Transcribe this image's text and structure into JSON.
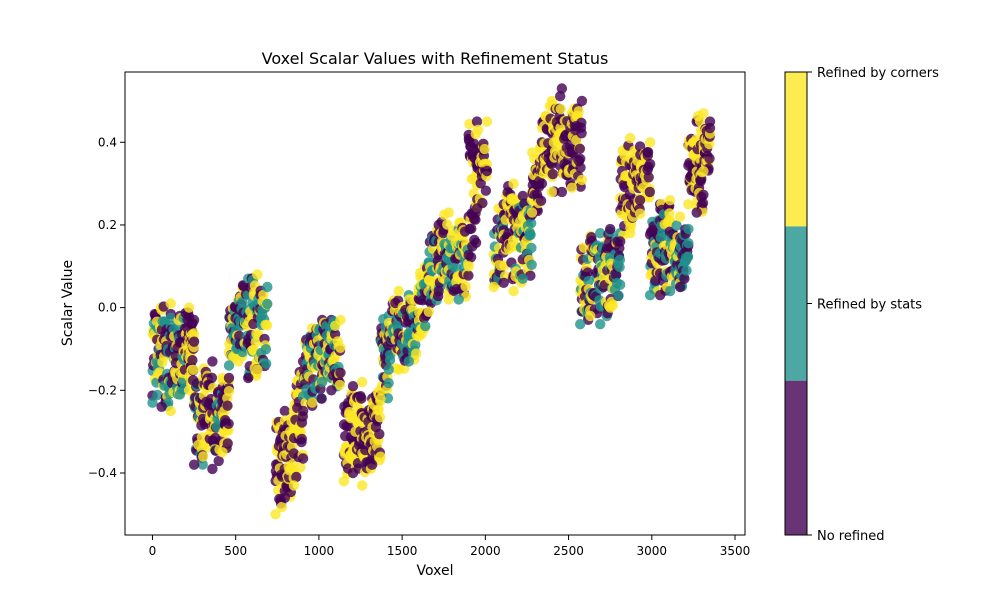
{
  "chart_data": {
    "type": "scatter",
    "title": "Voxel Scalar Values with Refinement Status",
    "xlabel": "Voxel",
    "ylabel": "Scalar Value",
    "xlim": [
      -165,
      3560
    ],
    "ylim": [
      -0.55,
      0.57
    ],
    "x_ticks": [
      0,
      500,
      1000,
      1500,
      2000,
      2500,
      3000,
      3500
    ],
    "x_tick_labels": [
      "0",
      "500",
      "1000",
      "1500",
      "2000",
      "2500",
      "3000",
      "3500"
    ],
    "y_ticks": [
      -0.4,
      -0.2,
      0.0,
      0.2,
      0.4
    ],
    "y_tick_labels": [
      "−0.4",
      "−0.2",
      "0.0",
      "0.2",
      "0.4"
    ],
    "grid": false,
    "marker_alpha": 0.8,
    "colorbar": {
      "categories": [
        {
          "label": "No refined",
          "value": 0,
          "color": "#440154"
        },
        {
          "label": "Refined by stats",
          "value": 1,
          "color": "#21918c"
        },
        {
          "label": "Refined by corners",
          "value": 2,
          "color": "#fde725"
        }
      ],
      "range": [
        0,
        2
      ]
    },
    "blocks": [
      {
        "x": [
          0,
          50
        ],
        "y": [
          -0.23,
          0.0
        ],
        "status": [
          1,
          2,
          0
        ]
      },
      {
        "x": [
          55,
          110
        ],
        "y": [
          -0.24,
          0.01
        ],
        "status": [
          0,
          2,
          1
        ]
      },
      {
        "x": [
          110,
          165
        ],
        "y": [
          -0.25,
          -0.02
        ],
        "status": [
          2,
          0,
          1
        ]
      },
      {
        "x": [
          165,
          220
        ],
        "y": [
          -0.21,
          0.0
        ],
        "status": [
          1,
          2,
          0
        ]
      },
      {
        "x": [
          220,
          250
        ],
        "y": [
          -0.2,
          -0.03
        ],
        "status": [
          2,
          0
        ]
      },
      {
        "x": [
          250,
          305
        ],
        "y": [
          -0.38,
          -0.17
        ],
        "status": [
          0,
          2,
          1
        ]
      },
      {
        "x": [
          305,
          360
        ],
        "y": [
          -0.36,
          -0.13
        ],
        "status": [
          2,
          0
        ]
      },
      {
        "x": [
          360,
          420
        ],
        "y": [
          -0.39,
          -0.17
        ],
        "status": [
          0,
          2,
          1
        ]
      },
      {
        "x": [
          420,
          460
        ],
        "y": [
          -0.35,
          -0.17
        ],
        "status": [
          2,
          0
        ]
      },
      {
        "x": [
          460,
          515
        ],
        "y": [
          -0.14,
          0.02
        ],
        "status": [
          1,
          2,
          0
        ]
      },
      {
        "x": [
          515,
          575
        ],
        "y": [
          -0.13,
          0.07
        ],
        "status": [
          2,
          1,
          0
        ]
      },
      {
        "x": [
          575,
          630
        ],
        "y": [
          -0.17,
          0.08
        ],
        "status": [
          0,
          2,
          1
        ]
      },
      {
        "x": [
          630,
          690
        ],
        "y": [
          -0.15,
          0.05
        ],
        "status": [
          2,
          1,
          0
        ]
      },
      {
        "x": [
          740,
          795
        ],
        "y": [
          -0.5,
          -0.25
        ],
        "status": [
          2,
          0
        ]
      },
      {
        "x": [
          795,
          850
        ],
        "y": [
          -0.46,
          -0.25
        ],
        "status": [
          0,
          2
        ]
      },
      {
        "x": [
          850,
          905
        ],
        "y": [
          -0.43,
          -0.13
        ],
        "status": [
          2,
          0
        ]
      },
      {
        "x": [
          905,
          960
        ],
        "y": [
          -0.25,
          -0.05
        ],
        "status": [
          0,
          2,
          1
        ]
      },
      {
        "x": [
          960,
          1020
        ],
        "y": [
          -0.23,
          -0.03
        ],
        "status": [
          2,
          0,
          1
        ]
      },
      {
        "x": [
          1020,
          1075
        ],
        "y": [
          -0.18,
          -0.03
        ],
        "status": [
          1,
          0,
          2
        ]
      },
      {
        "x": [
          1075,
          1130
        ],
        "y": [
          -0.2,
          -0.03
        ],
        "status": [
          0,
          2,
          1
        ]
      },
      {
        "x": [
          1150,
          1205
        ],
        "y": [
          -0.42,
          -0.19
        ],
        "status": [
          2,
          0
        ]
      },
      {
        "x": [
          1205,
          1260
        ],
        "y": [
          -0.4,
          -0.18
        ],
        "status": [
          0,
          2
        ]
      },
      {
        "x": [
          1260,
          1320
        ],
        "y": [
          -0.43,
          -0.22
        ],
        "status": [
          2,
          0
        ]
      },
      {
        "x": [
          1320,
          1370
        ],
        "y": [
          -0.38,
          -0.2
        ],
        "status": [
          0,
          2
        ]
      },
      {
        "x": [
          1370,
          1420
        ],
        "y": [
          -0.22,
          -0.02
        ],
        "status": [
          2,
          1,
          0
        ]
      },
      {
        "x": [
          1420,
          1480
        ],
        "y": [
          -0.15,
          0.04
        ],
        "status": [
          1,
          2,
          0
        ]
      },
      {
        "x": [
          1480,
          1540
        ],
        "y": [
          -0.15,
          0.03
        ],
        "status": [
          2,
          1,
          0
        ]
      },
      {
        "x": [
          1540,
          1600
        ],
        "y": [
          -0.13,
          0.04
        ],
        "status": [
          1,
          2,
          0
        ]
      },
      {
        "x": [
          1600,
          1660
        ],
        "y": [
          -0.07,
          0.11
        ],
        "status": [
          2,
          1,
          0
        ]
      },
      {
        "x": [
          1660,
          1720
        ],
        "y": [
          -0.01,
          0.2
        ],
        "status": [
          2,
          0,
          1
        ]
      },
      {
        "x": [
          1720,
          1780
        ],
        "y": [
          0.04,
          0.23
        ],
        "status": [
          0,
          2,
          1
        ]
      },
      {
        "x": [
          1780,
          1840
        ],
        "y": [
          0.02,
          0.19
        ],
        "status": [
          2,
          1,
          0
        ]
      },
      {
        "x": [
          1840,
          1900
        ],
        "y": [
          0.02,
          0.22
        ],
        "status": [
          1,
          0,
          2
        ]
      },
      {
        "x": [
          1900,
          1950
        ],
        "y": [
          0.1,
          0.45
        ],
        "status": [
          2,
          0
        ]
      },
      {
        "x": [
          1950,
          2010
        ],
        "y": [
          0.24,
          0.45
        ],
        "status": [
          0,
          2
        ]
      },
      {
        "x": [
          2050,
          2110
        ],
        "y": [
          0.05,
          0.25
        ],
        "status": [
          2,
          0,
          1
        ]
      },
      {
        "x": [
          2110,
          2170
        ],
        "y": [
          0.06,
          0.3
        ],
        "status": [
          0,
          2
        ]
      },
      {
        "x": [
          2170,
          2225
        ],
        "y": [
          0.04,
          0.27
        ],
        "status": [
          2,
          0,
          1
        ]
      },
      {
        "x": [
          2225,
          2280
        ],
        "y": [
          0.07,
          0.26
        ],
        "status": [
          1,
          2,
          0
        ]
      },
      {
        "x": [
          2280,
          2340
        ],
        "y": [
          0.23,
          0.4
        ],
        "status": [
          2,
          0
        ]
      },
      {
        "x": [
          2340,
          2400
        ],
        "y": [
          0.3,
          0.5
        ],
        "status": [
          0,
          2
        ]
      },
      {
        "x": [
          2400,
          2460
        ],
        "y": [
          0.28,
          0.53
        ],
        "status": [
          2,
          0
        ]
      },
      {
        "x": [
          2460,
          2520
        ],
        "y": [
          0.28,
          0.47
        ],
        "status": [
          0,
          2
        ]
      },
      {
        "x": [
          2520,
          2580
        ],
        "y": [
          0.29,
          0.5
        ],
        "status": [
          2,
          0
        ]
      },
      {
        "x": [
          2570,
          2630
        ],
        "y": [
          -0.04,
          0.16
        ],
        "status": [
          1,
          0,
          2
        ]
      },
      {
        "x": [
          2630,
          2690
        ],
        "y": [
          -0.02,
          0.18
        ],
        "status": [
          2,
          1,
          0
        ]
      },
      {
        "x": [
          2690,
          2750
        ],
        "y": [
          -0.04,
          0.19
        ],
        "status": [
          1,
          0,
          2
        ]
      },
      {
        "x": [
          2750,
          2810
        ],
        "y": [
          0.0,
          0.18
        ],
        "status": [
          2,
          1,
          0
        ]
      },
      {
        "x": [
          2810,
          2870
        ],
        "y": [
          0.16,
          0.41
        ],
        "status": [
          0,
          2
        ]
      },
      {
        "x": [
          2870,
          2930
        ],
        "y": [
          0.18,
          0.39
        ],
        "status": [
          2,
          0
        ]
      },
      {
        "x": [
          2930,
          2990
        ],
        "y": [
          0.26,
          0.4
        ],
        "status": [
          0,
          2
        ]
      },
      {
        "x": [
          2990,
          3050
        ],
        "y": [
          0.03,
          0.25
        ],
        "status": [
          1,
          0,
          2
        ]
      },
      {
        "x": [
          3050,
          3110
        ],
        "y": [
          0.03,
          0.26
        ],
        "status": [
          0,
          2,
          1
        ]
      },
      {
        "x": [
          3110,
          3170
        ],
        "y": [
          0.04,
          0.22
        ],
        "status": [
          1,
          2,
          0
        ]
      },
      {
        "x": [
          3170,
          3220
        ],
        "y": [
          0.05,
          0.19
        ],
        "status": [
          0,
          1
        ]
      },
      {
        "x": [
          3220,
          3270
        ],
        "y": [
          0.25,
          0.45
        ],
        "status": [
          2,
          0
        ]
      },
      {
        "x": [
          3270,
          3310
        ],
        "y": [
          0.23,
          0.47
        ],
        "status": [
          0,
          2
        ]
      },
      {
        "x": [
          3310,
          3350
        ],
        "y": [
          0.33,
          0.45
        ],
        "status": [
          2,
          0
        ]
      }
    ]
  }
}
